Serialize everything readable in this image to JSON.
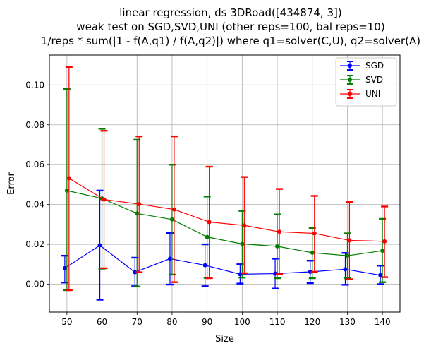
{
  "chart_data": {
    "type": "line",
    "title_lines": [
      "linear regression, ds 3DRoad([434874, 3])",
      "weak test on SGD,SVD,UNI (other reps=100, bal reps=10)",
      "1/reps * sum(|1 - f(A,q1) / f(A,q2)|) where q1=solver(C,U), q2=solver(A)"
    ],
    "xlabel": "Size",
    "ylabel": "Error",
    "x": [
      50,
      60,
      70,
      80,
      90,
      100,
      110,
      120,
      130,
      140
    ],
    "xlim": [
      45,
      145
    ],
    "ylim": [
      -0.014,
      0.115
    ],
    "xticks": [
      "50",
      "60",
      "70",
      "80",
      "90",
      "100",
      "110",
      "120",
      "130",
      "140"
    ],
    "yticks": [
      0.0,
      0.02,
      0.04,
      0.06,
      0.08,
      0.1
    ],
    "ytick_labels": [
      "0.00",
      "0.02",
      "0.04",
      "0.06",
      "0.08",
      "0.10"
    ],
    "grid": true,
    "legend_position": "top-right",
    "series": [
      {
        "name": "SGD",
        "color": "#0000ff",
        "x_offset": -0.6,
        "values": [
          0.008,
          0.0195,
          0.006,
          0.0128,
          0.0095,
          0.005,
          0.0053,
          0.0062,
          0.0075,
          0.0045
        ],
        "err_low": [
          0.0008,
          -0.0078,
          -0.001,
          -0.0002,
          -0.001,
          0.0003,
          -0.0022,
          0.0005,
          -0.0003,
          0.0
        ],
        "err_high": [
          0.0143,
          0.047,
          0.0133,
          0.0257,
          0.02,
          0.01,
          0.0128,
          0.0118,
          0.0157,
          0.0093
        ]
      },
      {
        "name": "SVD",
        "color": "#008000",
        "x_offset": 0,
        "values": [
          0.047,
          0.043,
          0.0355,
          0.0325,
          0.0237,
          0.0202,
          0.019,
          0.0158,
          0.0143,
          0.0168
        ],
        "err_low": [
          -0.003,
          0.0078,
          -0.0012,
          0.0048,
          0.0032,
          0.0033,
          0.003,
          0.003,
          0.003,
          0.001
        ],
        "err_high": [
          0.098,
          0.078,
          0.0725,
          0.06,
          0.044,
          0.0368,
          0.035,
          0.0282,
          0.0255,
          0.0328
        ]
      },
      {
        "name": "UNI",
        "color": "#ff0000",
        "x_offset": 0.6,
        "values": [
          0.0532,
          0.0425,
          0.0402,
          0.0375,
          0.0312,
          0.0295,
          0.0263,
          0.0255,
          0.022,
          0.0215
        ],
        "err_low": [
          -0.003,
          0.008,
          0.006,
          0.001,
          0.003,
          0.0055,
          0.005,
          0.0062,
          0.0025,
          0.0035
        ],
        "err_high": [
          0.109,
          0.077,
          0.0742,
          0.0742,
          0.059,
          0.0538,
          0.0478,
          0.0443,
          0.0412,
          0.039
        ]
      }
    ]
  }
}
